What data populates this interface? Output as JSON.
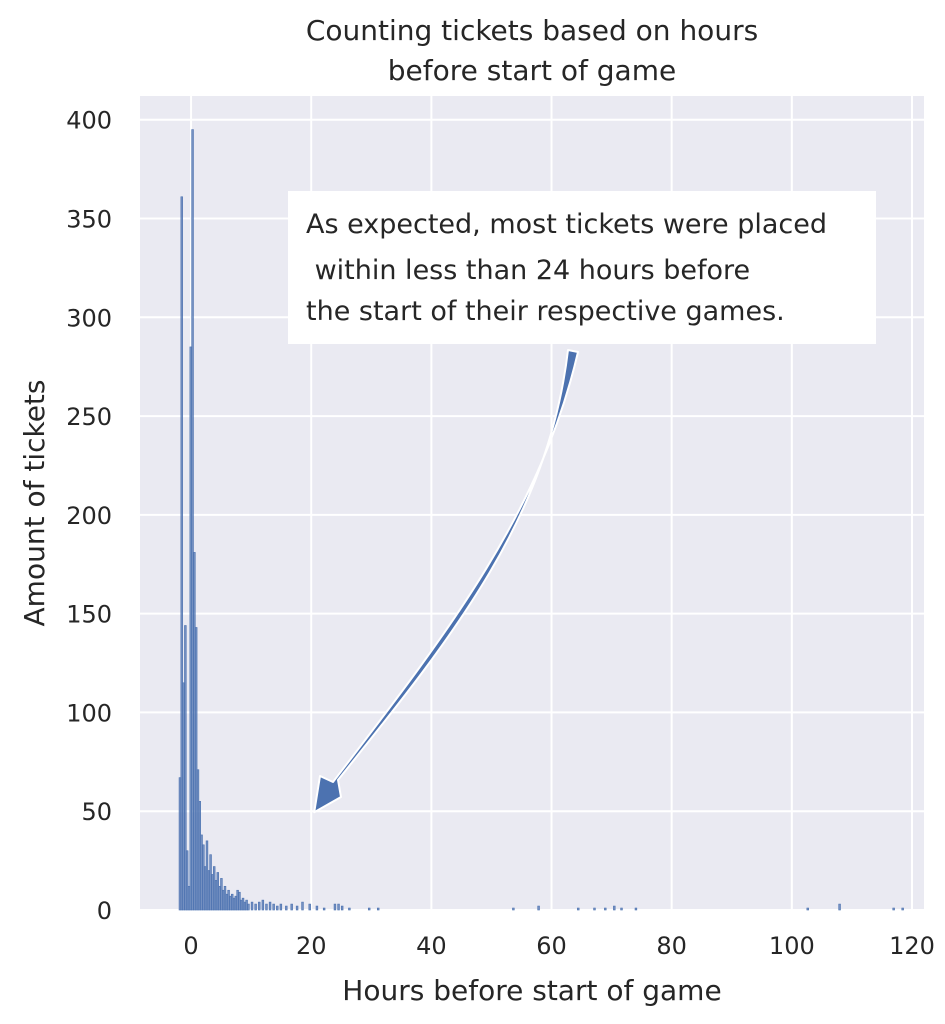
{
  "chart_data": {
    "type": "bar",
    "title_lines": [
      "Counting tickets based on hours",
      "before start of game"
    ],
    "xlabel": "Hours before start of game",
    "ylabel": "Amount of tickets",
    "xlim": [
      -8.5,
      122
    ],
    "ylim": [
      0,
      412
    ],
    "xticks": [
      0,
      20,
      40,
      60,
      80,
      100,
      120
    ],
    "yticks": [
      0,
      50,
      100,
      150,
      200,
      250,
      300,
      350,
      400
    ],
    "grid": true,
    "bar_color": "#4c72b0",
    "background_color": "#eaeaf2",
    "bins": [
      {
        "x": -2.0,
        "y": 67
      },
      {
        "x": -1.7,
        "y": 361
      },
      {
        "x": -1.4,
        "y": 115
      },
      {
        "x": -1.1,
        "y": 144
      },
      {
        "x": -0.8,
        "y": 30
      },
      {
        "x": -0.5,
        "y": 12
      },
      {
        "x": -0.2,
        "y": 285
      },
      {
        "x": 0.1,
        "y": 395
      },
      {
        "x": 0.4,
        "y": 181
      },
      {
        "x": 0.7,
        "y": 143
      },
      {
        "x": 1.0,
        "y": 71
      },
      {
        "x": 1.3,
        "y": 55
      },
      {
        "x": 1.6,
        "y": 38
      },
      {
        "x": 1.9,
        "y": 33
      },
      {
        "x": 2.2,
        "y": 22
      },
      {
        "x": 2.5,
        "y": 35
      },
      {
        "x": 2.8,
        "y": 20
      },
      {
        "x": 3.1,
        "y": 28
      },
      {
        "x": 3.4,
        "y": 18
      },
      {
        "x": 3.7,
        "y": 22
      },
      {
        "x": 4.0,
        "y": 15
      },
      {
        "x": 4.3,
        "y": 19
      },
      {
        "x": 4.6,
        "y": 12
      },
      {
        "x": 4.9,
        "y": 16
      },
      {
        "x": 5.2,
        "y": 10
      },
      {
        "x": 5.5,
        "y": 12
      },
      {
        "x": 5.8,
        "y": 8
      },
      {
        "x": 6.1,
        "y": 10
      },
      {
        "x": 6.4,
        "y": 7
      },
      {
        "x": 6.7,
        "y": 8
      },
      {
        "x": 7.0,
        "y": 6
      },
      {
        "x": 7.3,
        "y": 7
      },
      {
        "x": 7.6,
        "y": 10
      },
      {
        "x": 7.9,
        "y": 9
      },
      {
        "x": 8.2,
        "y": 5
      },
      {
        "x": 8.5,
        "y": 6
      },
      {
        "x": 8.8,
        "y": 4
      },
      {
        "x": 9.1,
        "y": 5
      },
      {
        "x": 9.4,
        "y": 3
      },
      {
        "x": 10.0,
        "y": 4
      },
      {
        "x": 10.6,
        "y": 3
      },
      {
        "x": 11.2,
        "y": 4
      },
      {
        "x": 11.8,
        "y": 5
      },
      {
        "x": 12.4,
        "y": 3
      },
      {
        "x": 13.0,
        "y": 4
      },
      {
        "x": 13.6,
        "y": 3
      },
      {
        "x": 14.2,
        "y": 2
      },
      {
        "x": 14.8,
        "y": 3
      },
      {
        "x": 15.7,
        "y": 2
      },
      {
        "x": 16.6,
        "y": 3
      },
      {
        "x": 17.5,
        "y": 2
      },
      {
        "x": 18.4,
        "y": 4
      },
      {
        "x": 19.6,
        "y": 3
      },
      {
        "x": 20.8,
        "y": 2
      },
      {
        "x": 22.0,
        "y": 1
      },
      {
        "x": 23.8,
        "y": 3
      },
      {
        "x": 24.4,
        "y": 3
      },
      {
        "x": 25.0,
        "y": 2
      },
      {
        "x": 26.2,
        "y": 1
      },
      {
        "x": 29.5,
        "y": 1
      },
      {
        "x": 31.0,
        "y": 1
      },
      {
        "x": 53.5,
        "y": 1
      },
      {
        "x": 57.7,
        "y": 2
      },
      {
        "x": 64.3,
        "y": 1
      },
      {
        "x": 67.0,
        "y": 1
      },
      {
        "x": 68.8,
        "y": 1
      },
      {
        "x": 70.3,
        "y": 2
      },
      {
        "x": 71.5,
        "y": 1
      },
      {
        "x": 73.9,
        "y": 1
      },
      {
        "x": 102.5,
        "y": 1
      },
      {
        "x": 107.8,
        "y": 3
      },
      {
        "x": 116.8,
        "y": 1
      },
      {
        "x": 118.3,
        "y": 1
      }
    ],
    "annotation": {
      "lines": [
        "As expected, most tickets were placed",
        " within less than 24 hours before",
        "the start of their respective games."
      ],
      "arrow_target": {
        "x": 20.5,
        "y": 52
      }
    }
  }
}
